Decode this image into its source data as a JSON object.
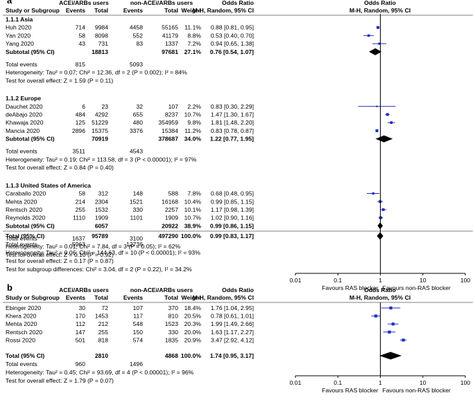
{
  "chart_data": [
    {
      "type": "forest",
      "panel": "a",
      "header": {
        "group1": "ACEi/ARBs users",
        "group2": "non-ACEi/ARBs users",
        "or_title": "Odds Ratio",
        "study": "Study or Subgroup",
        "events1": "Events",
        "total1": "Total",
        "events2": "Events",
        "total2": "Total",
        "weight": "Weight",
        "method": "M-H, Random, 95% CI",
        "method_plot": "M-H, Random, 95% CI"
      },
      "subgroups": [
        {
          "title": "1.1.1 Asia",
          "studies": [
            {
              "name": "Huh 2020",
              "e1": "714",
              "t1": "9984",
              "e2": "4458",
              "t2": "55165",
              "weight": "11.1%",
              "ci_text": "0.88 [0.81, 0.95]",
              "or": 0.88,
              "lo": 0.81,
              "hi": 0.95
            },
            {
              "name": "Yan 2020",
              "e1": "58",
              "t1": "8098",
              "e2": "552",
              "t2": "41179",
              "weight": "8.8%",
              "ci_text": "0.53 [0.40, 0.70]",
              "or": 0.53,
              "lo": 0.4,
              "hi": 0.7
            },
            {
              "name": "Yang 2020",
              "e1": "43",
              "t1": "731",
              "e2": "83",
              "t2": "1337",
              "weight": "7.2%",
              "ci_text": "0.94 [0.65, 1.38]",
              "or": 0.94,
              "lo": 0.65,
              "hi": 1.38
            }
          ],
          "subtotal": {
            "label": "Subtotal (95% CI)",
            "t1": "18813",
            "t2": "97681",
            "weight": "27.1%",
            "ci_text": "0.76 [0.54, 1.07]",
            "or": 0.76,
            "lo": 0.54,
            "hi": 1.07
          },
          "events": {
            "label": "Total events",
            "e1": "815",
            "e2": "5093"
          },
          "het": "Heterogeneity: Tau² = 0.07; Chi² = 12.36, df = 2 (P = 0.002); I² = 84%",
          "overall": "Test for overall effect: Z = 1.59 (P = 0.11)"
        },
        {
          "title": "1.1.2 Europe",
          "studies": [
            {
              "name": "Dauchet 2020",
              "e1": "6",
              "t1": "23",
              "e2": "32",
              "t2": "107",
              "weight": "2.2%",
              "ci_text": "0.83 [0.30, 2.29]",
              "or": 0.83,
              "lo": 0.3,
              "hi": 2.29
            },
            {
              "name": "deAbajo 2020",
              "e1": "484",
              "t1": "4292",
              "e2": "655",
              "t2": "8237",
              "weight": "10.7%",
              "ci_text": "1.47 [1.30, 1.67]",
              "or": 1.47,
              "lo": 1.3,
              "hi": 1.67
            },
            {
              "name": "Khawaja 2020",
              "e1": "125",
              "t1": "51229",
              "e2": "480",
              "t2": "354959",
              "weight": "9.8%",
              "ci_text": "1.81 [1.48, 2.20]",
              "or": 1.81,
              "lo": 1.48,
              "hi": 2.2
            },
            {
              "name": "Mancia 2020",
              "e1": "2896",
              "t1": "15375",
              "e2": "3376",
              "t2": "15384",
              "weight": "11.2%",
              "ci_text": "0.83 [0.78, 0.87]",
              "or": 0.83,
              "lo": 0.78,
              "hi": 0.87
            }
          ],
          "subtotal": {
            "label": "Subtotal (95% CI)",
            "t1": "70919",
            "t2": "378687",
            "weight": "34.0%",
            "ci_text": "1.22 [0.77, 1.95]",
            "or": 1.22,
            "lo": 0.77,
            "hi": 1.95
          },
          "events": {
            "label": "Total events",
            "e1": "3511",
            "e2": "4543"
          },
          "het": "Heterogeneity: Tau² = 0.19; Chi² = 113.58, df = 3 (P < 0.00001); I² = 97%",
          "overall": "Test for overall effect: Z = 0.84 (P = 0.40)"
        },
        {
          "title": "1.1.3 United States of America",
          "studies": [
            {
              "name": "Caraballo 2020",
              "e1": "58",
              "t1": "312",
              "e2": "148",
              "t2": "588",
              "weight": "7.8%",
              "ci_text": "0.68 [0.48, 0.95]",
              "or": 0.68,
              "lo": 0.48,
              "hi": 0.95
            },
            {
              "name": "Mehta 2020",
              "e1": "214",
              "t1": "2304",
              "e2": "1521",
              "t2": "16168",
              "weight": "10.4%",
              "ci_text": "0.99 [0.85, 1.15]",
              "or": 0.99,
              "lo": 0.85,
              "hi": 1.15
            },
            {
              "name": "Rentsch 2020",
              "e1": "255",
              "t1": "1532",
              "e2": "330",
              "t2": "2257",
              "weight": "10.1%",
              "ci_text": "1.17 [0.98, 1.39]",
              "or": 1.17,
              "lo": 0.98,
              "hi": 1.39
            },
            {
              "name": "Reynolds 2020",
              "e1": "1110",
              "t1": "1909",
              "e2": "1101",
              "t2": "1909",
              "weight": "10.7%",
              "ci_text": "1.02 [0.90, 1.16]",
              "or": 1.02,
              "lo": 0.9,
              "hi": 1.16
            }
          ],
          "subtotal": {
            "label": "Subtotal (95% CI)",
            "t1": "6057",
            "t2": "20922",
            "weight": "38.9%",
            "ci_text": "0.99 [0.86, 1.15]",
            "or": 0.99,
            "lo": 0.86,
            "hi": 1.15
          },
          "events": {
            "label": "Total events",
            "e1": "1637",
            "e2": "3100"
          },
          "het": "Heterogeneity: Tau² = 0.01; Chi² = 7.84, df = 3 (P = 0.05); I² = 62%",
          "overall": "Test for overall effect: Z = 0.10 (P = 0.92)"
        }
      ],
      "total": {
        "label": "Total (95% CI)",
        "t1": "95789",
        "t2": "497290",
        "weight": "100.0%",
        "ci_text": "0.99 [0.83, 1.17]",
        "or": 0.99,
        "lo": 0.83,
        "hi": 1.17
      },
      "total_events": {
        "label": "Total events",
        "e1": "5963",
        "e2": "12736"
      },
      "footer": [
        "Heterogeneity: Tau² = 0.06; Chi² = 144.63, df = 10 (P < 0.00001); I² = 93%",
        "Test for overall effect: Z = 0.17 (P = 0.87)",
        "Test for subgroup differences: Chi² = 3.04, df = 2 (P = 0.22), I² = 34.2%"
      ],
      "axis": {
        "scale": "log",
        "xlim": [
          0.01,
          100
        ],
        "ticks": [
          "0.01",
          "0.1",
          "1",
          "10",
          "100"
        ],
        "favours_left": "Favours RAS blocker",
        "favours_right": "Favours non-RAS blocker"
      }
    },
    {
      "type": "forest",
      "panel": "b",
      "header": {
        "group1": "ACEi/ARBs users",
        "group2": "non-ACEi/ARBs users",
        "or_title": "Odds Ratio",
        "study": "Study or Subgroup",
        "events1": "Events",
        "total1": "Total",
        "events2": "Events",
        "total2": "Total",
        "weight": "Weight",
        "method": "M-H, Random, 95% CI",
        "method_plot": "M-H, Random, 95% CI"
      },
      "studies": [
        {
          "name": "Ebinger 2020",
          "e1": "30",
          "t1": "72",
          "e2": "107",
          "t2": "370",
          "weight": "18.4%",
          "ci_text": "1.76 [1.04, 2.95]",
          "or": 1.76,
          "lo": 1.04,
          "hi": 2.95
        },
        {
          "name": "Khera 2020",
          "e1": "170",
          "t1": "1453",
          "e2": "117",
          "t2": "810",
          "weight": "20.5%",
          "ci_text": "0.78 [0.61, 1.01]",
          "or": 0.78,
          "lo": 0.61,
          "hi": 1.01
        },
        {
          "name": "Mehta 2020",
          "e1": "112",
          "t1": "212",
          "e2": "548",
          "t2": "1523",
          "weight": "20.3%",
          "ci_text": "1.99 [1.49, 2.66]",
          "or": 1.99,
          "lo": 1.49,
          "hi": 2.66
        },
        {
          "name": "Rentsch 2020",
          "e1": "147",
          "t1": "255",
          "e2": "150",
          "t2": "330",
          "weight": "20.0%",
          "ci_text": "1.63 [1.17, 2.27]",
          "or": 1.63,
          "lo": 1.17,
          "hi": 2.27
        },
        {
          "name": "Rossi 2020",
          "e1": "501",
          "t1": "818",
          "e2": "574",
          "t2": "1835",
          "weight": "20.9%",
          "ci_text": "3.47 [2.92, 4.12]",
          "or": 3.47,
          "lo": 2.92,
          "hi": 4.12
        }
      ],
      "total": {
        "label": "Total (95% CI)",
        "t1": "2810",
        "t2": "4868",
        "weight": "100.0%",
        "ci_text": "1.74 [0.95, 3.17]",
        "or": 1.74,
        "lo": 0.95,
        "hi": 3.17
      },
      "total_events": {
        "label": "Total events",
        "e1": "960",
        "e2": "1496"
      },
      "footer": [
        "Heterogeneity: Tau² = 0.45; Chi² = 93.69, df = 4 (P < 0.00001); I² = 96%",
        "Test for overall effect: Z = 1.79 (P = 0.07)"
      ],
      "axis": {
        "scale": "log",
        "xlim": [
          0.01,
          100
        ],
        "ticks": [
          "0.01",
          "0.1",
          "1",
          "10",
          "100"
        ],
        "favours_left": "Favours RAS blocker",
        "favours_right": "Favours non-RAS blocker"
      }
    }
  ],
  "colors": {
    "square": "#1f2ec2",
    "diamond": "#000000",
    "line": "#000000",
    "text": "#000000",
    "rule": "#808080"
  }
}
